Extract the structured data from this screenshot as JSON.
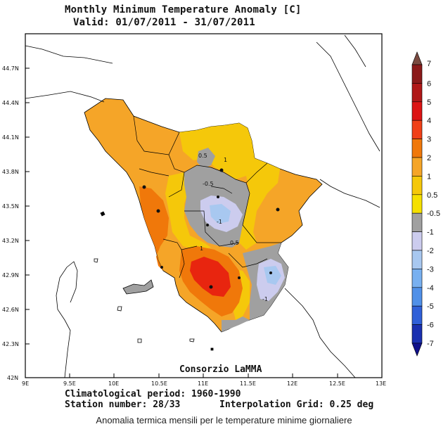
{
  "title": {
    "line1": "Monthly Minimum Temperature Anomaly [C]",
    "line2": "Valid: 01/07/2011 - 31/07/2011"
  },
  "axes": {
    "lat_labels": [
      "44.7N",
      "44.4N",
      "44.1N",
      "43.8N",
      "43.5N",
      "43.2N",
      "42.9N",
      "42.6N",
      "42.3N",
      "42N"
    ],
    "lon_labels": [
      "9E",
      "9.5E",
      "10E",
      "10.5E",
      "11E",
      "11.5E",
      "12E",
      "12.5E",
      "13E"
    ]
  },
  "map": {
    "type": "contour-map",
    "region": "Tuscany",
    "contour_labels": [
      "1",
      "0.5",
      "-0.5",
      "-1",
      "0.5",
      "1",
      "-1"
    ],
    "credit": "Consorzio LaMMA"
  },
  "legend": {
    "labels": [
      "7",
      "6",
      "5",
      "4",
      "3",
      "2",
      "1",
      "0.5",
      "-0.5",
      "-1",
      "-2",
      "-3",
      "-4",
      "-5",
      "-6",
      "-7"
    ],
    "colors": [
      "#7a4a40",
      "#8b1a1a",
      "#b01818",
      "#dc1414",
      "#f04018",
      "#f0780a",
      "#f5a528",
      "#f5c80a",
      "#f5e000",
      "#a0a0a0",
      "#ccccee",
      "#a8c8f0",
      "#78b0f0",
      "#5090e8",
      "#3060d8",
      "#1a30b0",
      "#10108a"
    ]
  },
  "footer": {
    "climatology": "Climatological period: 1960-1990",
    "stations": "Station number: 28/33",
    "grid": "Interpolation Grid: 0.25 deg"
  },
  "caption": "Anomalia termica mensili per le temperature minime giornaliere"
}
